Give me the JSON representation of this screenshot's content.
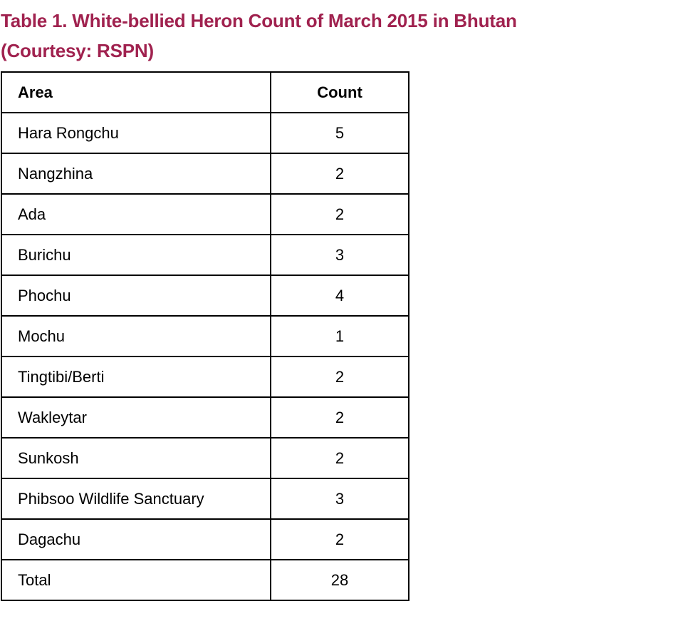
{
  "title": {
    "line1": "Table 1. White-bellied Heron Count of March 2015 in Bhutan",
    "line2": "(Courtesy: RSPN)",
    "color": "#a0224f"
  },
  "table": {
    "headers": {
      "area": "Area",
      "count": "Count"
    },
    "rows": [
      {
        "area": "Hara Rongchu",
        "count": "5"
      },
      {
        "area": "Nangzhina",
        "count": "2"
      },
      {
        "area": "Ada",
        "count": "2"
      },
      {
        "area": "Burichu",
        "count": "3"
      },
      {
        "area": "Phochu",
        "count": "4"
      },
      {
        "area": "Mochu",
        "count": "1"
      },
      {
        "area": "Tingtibi/Berti",
        "count": "2"
      },
      {
        "area": "Wakleytar",
        "count": "2"
      },
      {
        "area": "Sunkosh",
        "count": "2"
      },
      {
        "area": "Phibsoo Wildlife Sanctuary",
        "count": "3"
      },
      {
        "area": "Dagachu",
        "count": "2"
      },
      {
        "area": "Total",
        "count": "28"
      }
    ]
  }
}
